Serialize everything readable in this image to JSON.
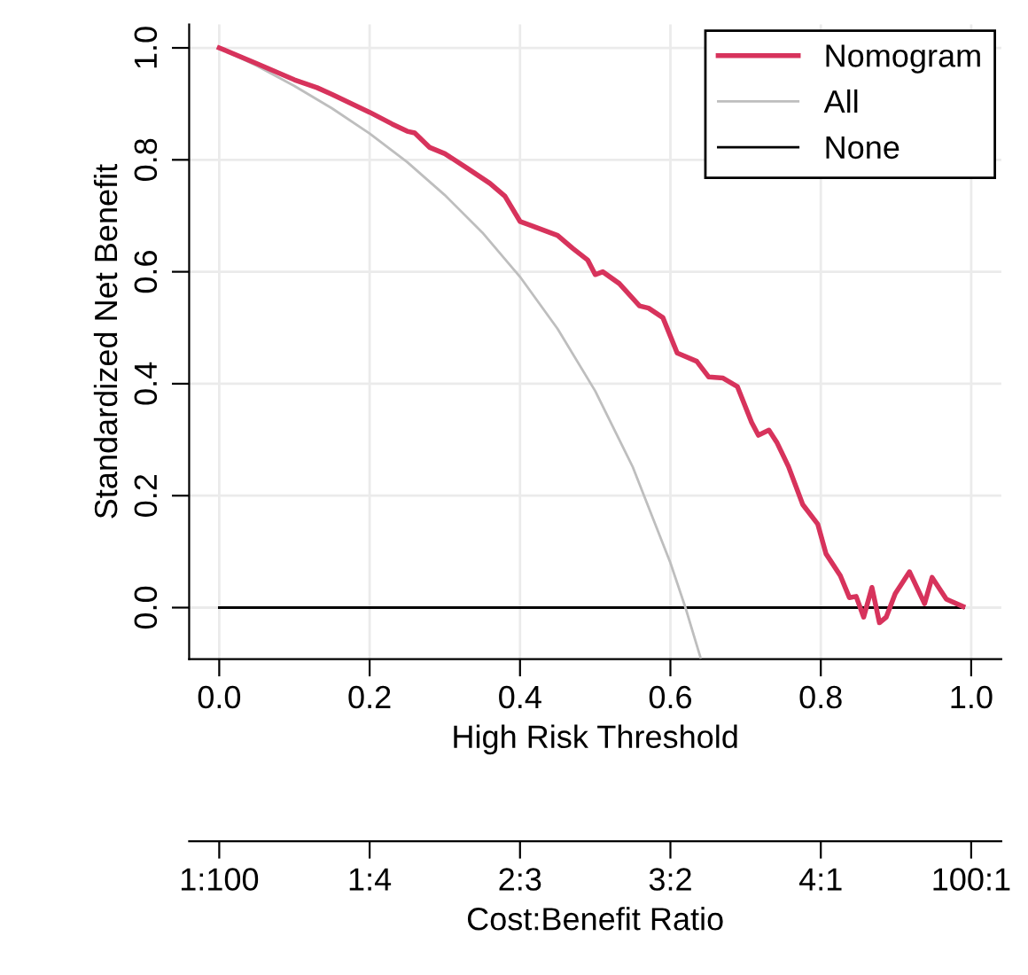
{
  "chart_data": {
    "type": "line",
    "xlabel": "High Risk Threshold",
    "ylabel": "Standardized Net Benefit",
    "x2label": "Cost:Benefit Ratio",
    "xlim": [
      -0.04,
      1.04
    ],
    "ylim": [
      -0.092,
      1.042
    ],
    "xticks": [
      {
        "value": 0,
        "label": "0.0"
      },
      {
        "value": 0.2,
        "label": "0.2"
      },
      {
        "value": 0.4,
        "label": "0.4"
      },
      {
        "value": 0.6,
        "label": "0.6"
      },
      {
        "value": 0.8,
        "label": "0.8"
      },
      {
        "value": 1,
        "label": "1.0"
      }
    ],
    "yticks": [
      {
        "value": 0,
        "label": "0.0"
      },
      {
        "value": 0.2,
        "label": "0.2"
      },
      {
        "value": 0.4,
        "label": "0.4"
      },
      {
        "value": 0.6,
        "label": "0.6"
      },
      {
        "value": 0.8,
        "label": "0.8"
      },
      {
        "value": 1,
        "label": "1.0"
      }
    ],
    "annotations": [
      "1:100",
      "1:4",
      "2:3",
      "3:2",
      "4:1",
      "100:1"
    ],
    "grid": true,
    "legend": "top right",
    "marker": "none",
    "line_style": "solid",
    "series": [
      {
        "name": "Nomogram",
        "color": "#d7335c",
        "x": [
          0,
          0.05,
          0.1,
          0.13,
          0.15,
          0.2,
          0.23,
          0.25,
          0.26,
          0.28,
          0.3,
          0.33,
          0.36,
          0.38,
          0.4,
          0.42,
          0.45,
          0.47,
          0.49,
          0.5,
          0.51,
          0.532,
          0.559,
          0.571,
          0.59,
          0.609,
          0.635,
          0.651,
          0.67,
          0.689,
          0.708,
          0.717,
          0.731,
          0.742,
          0.757,
          0.776,
          0.796,
          0.807,
          0.826,
          0.838,
          0.847,
          0.857,
          0.868,
          0.878,
          0.887,
          0.899,
          0.918,
          0.938,
          0.948,
          0.967,
          0.989
        ],
        "values": [
          1.0,
          0.972,
          0.943,
          0.929,
          0.917,
          0.885,
          0.864,
          0.851,
          0.848,
          0.822,
          0.811,
          0.785,
          0.758,
          0.735,
          0.69,
          0.68,
          0.665,
          0.642,
          0.621,
          0.595,
          0.6,
          0.579,
          0.539,
          0.535,
          0.518,
          0.455,
          0.44,
          0.412,
          0.41,
          0.395,
          0.331,
          0.308,
          0.317,
          0.294,
          0.252,
          0.184,
          0.149,
          0.096,
          0.057,
          0.018,
          0.02,
          -0.017,
          0.036,
          -0.027,
          -0.017,
          0.025,
          0.064,
          0.007,
          0.054,
          0.015,
          0.002
        ]
      },
      {
        "name": "All",
        "color": "#bebebe",
        "x": [
          0,
          0.05,
          0.1,
          0.15,
          0.2,
          0.25,
          0.3,
          0.35,
          0.4,
          0.45,
          0.5,
          0.55,
          0.6,
          0.62,
          0.64
        ],
        "values": [
          1.0,
          0.968,
          0.932,
          0.892,
          0.847,
          0.796,
          0.737,
          0.67,
          0.591,
          0.498,
          0.387,
          0.251,
          0.08,
          0.0,
          -0.089
        ]
      },
      {
        "name": "None",
        "color": "#000000",
        "x": [
          0,
          0.99
        ],
        "values": [
          0,
          0
        ]
      }
    ]
  }
}
